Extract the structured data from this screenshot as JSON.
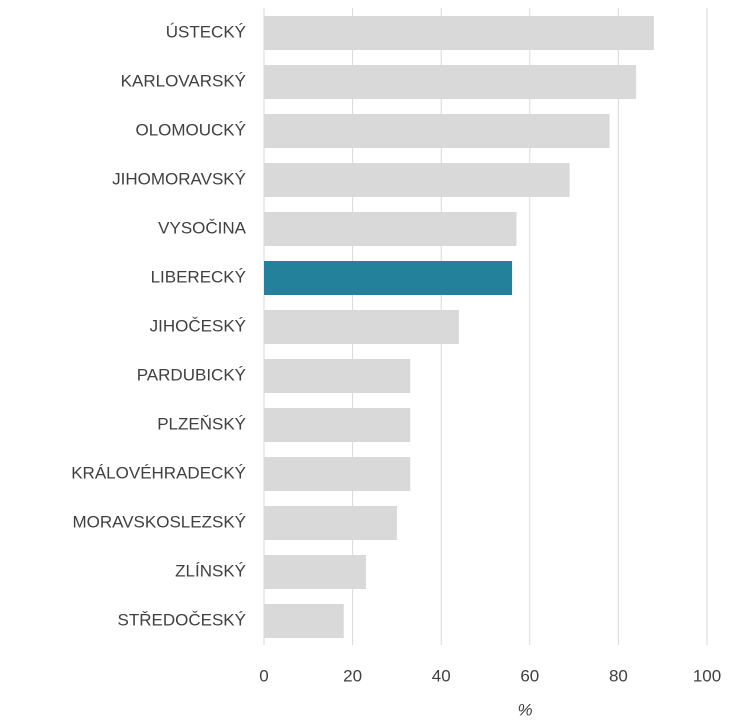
{
  "chart_data": {
    "type": "barh",
    "categories": [
      "ÚSTECKÝ",
      "KARLOVARSKÝ",
      "OLOMOUCKÝ",
      "JIHOMORAVSKÝ",
      "VYSOČINA",
      "LIBERECKÝ",
      "JIHOČESKÝ",
      "PARDUBICKÝ",
      "PLZEŇSKÝ",
      "KRÁLOVÉHRADECKÝ",
      "MORAVSKOSLEZSKÝ",
      "ZLÍNSKÝ",
      "STŘEDOČESKÝ"
    ],
    "values": [
      88,
      84,
      78,
      69,
      57,
      56,
      44,
      33,
      33,
      33,
      30,
      23,
      18
    ],
    "colors": [
      "#d9d9d9",
      "#d9d9d9",
      "#d9d9d9",
      "#d9d9d9",
      "#d9d9d9",
      "#23819c",
      "#d9d9d9",
      "#d9d9d9",
      "#d9d9d9",
      "#d9d9d9",
      "#d9d9d9",
      "#d9d9d9",
      "#d9d9d9"
    ],
    "xlim": [
      0,
      100
    ],
    "xticks": [
      0,
      20,
      40,
      60,
      80,
      100
    ],
    "xlabel": "%",
    "grid": true
  }
}
